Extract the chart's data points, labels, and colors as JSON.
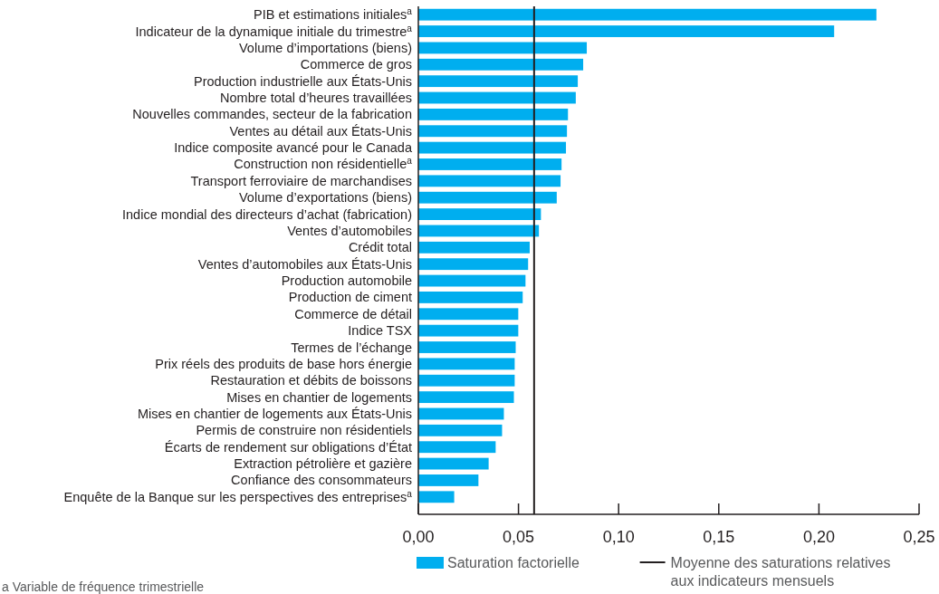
{
  "chart_data": {
    "type": "bar",
    "orientation": "horizontal",
    "categories": [
      "PIB et estimations initiales$^{a}$",
      "Indicateur de la dynamique initiale du trimestre$^{a}$",
      "Volume d’importations (biens)",
      "Commerce de gros",
      "Production industrielle aux États-Unis",
      "Nombre total d’heures travaillées",
      "Nouvelles commandes, secteur de la fabrication",
      "Ventes au détail aux États-Unis",
      "Indice composite avancé pour le Canada",
      "Construction non résidentielle$^{a}$",
      "Transport ferroviaire de marchandises",
      "Volume d’exportations (biens)",
      "Indice mondial des directeurs d’achat (fabrication)",
      "Ventes d’automobiles",
      "Crédit total",
      "Ventes d’automobiles aux États-Unis",
      "Production automobile",
      "Production de ciment",
      "Commerce de détail",
      "Indice TSX",
      "Termes de l’échange",
      "Prix réels des produits de base hors énergie",
      "Restauration et débits de boissons",
      "Mises en chantier de logements",
      "Mises en chantier de logements aux États-Unis",
      "Permis de construire non résidentiels",
      "Écarts de rendement sur obligations d’État",
      "Extraction pétrolière et gazière",
      "Confiance des consommateurs",
      "Enquête de la Banque sur les perspectives des entreprises$^{a}$"
    ],
    "series": [
      {
        "name": "Saturation factorielle",
        "color": "#00aeef",
        "values": [
          0.2287,
          0.2076,
          0.0841,
          0.0823,
          0.0796,
          0.0786,
          0.0747,
          0.0742,
          0.0737,
          0.0715,
          0.071,
          0.0691,
          0.0612,
          0.0602,
          0.0556,
          0.0548,
          0.0535,
          0.0521,
          0.0499,
          0.0499,
          0.0486,
          0.0481,
          0.0481,
          0.0477,
          0.0427,
          0.0418,
          0.0386,
          0.0351,
          0.03,
          0.0179
        ]
      }
    ],
    "xlim": [
      0,
      0.25
    ],
    "xticks": [
      {
        "value": 0,
        "label": "0,00"
      },
      {
        "value": 0.05,
        "label": "0,05"
      },
      {
        "value": 0.1,
        "label": "0,10"
      },
      {
        "value": 0.15,
        "label": "0,15"
      },
      {
        "value": 0.2,
        "label": "0,20"
      },
      {
        "value": 0.25,
        "label": "0,25"
      }
    ],
    "ref_lines": [
      {
        "axis": "x",
        "value": 0.0578,
        "label": "Moyenne des saturations relatives aux indicateurs mensuels",
        "color": "#231f20"
      }
    ],
    "legend": "bottom",
    "annotations": [
      "a Variable de fréquence trimestrielle"
    ]
  }
}
